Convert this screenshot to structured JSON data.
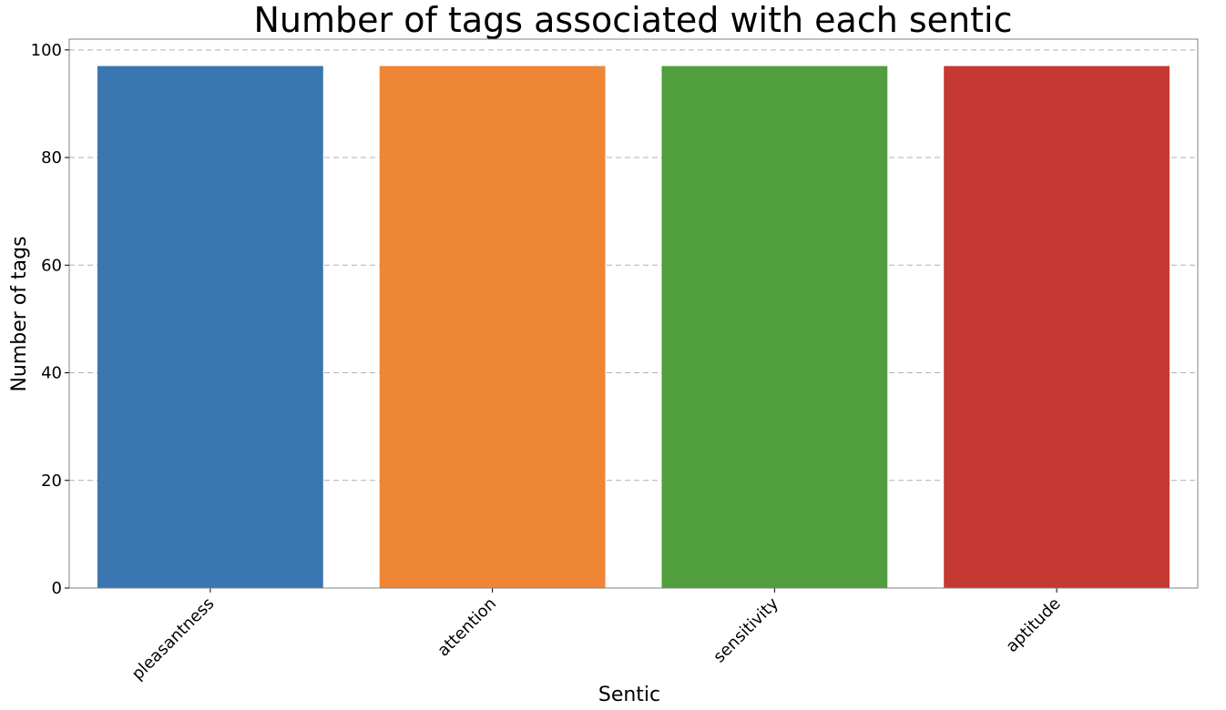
{
  "chart_data": {
    "type": "bar",
    "title": "Number of tags associated with each sentic",
    "xlabel": "Sentic",
    "ylabel": "Number of tags",
    "categories": [
      "pleasantness",
      "attention",
      "sensitivity",
      "aptitude"
    ],
    "values": [
      97,
      97,
      97,
      97
    ],
    "colors": [
      "#3a76af",
      "#ef8636",
      "#519e3e",
      "#c53932"
    ],
    "ylim": [
      0,
      102
    ],
    "yticks": [
      0,
      20,
      40,
      60,
      80,
      100
    ],
    "grid": "y-dashed",
    "legend": "none"
  }
}
